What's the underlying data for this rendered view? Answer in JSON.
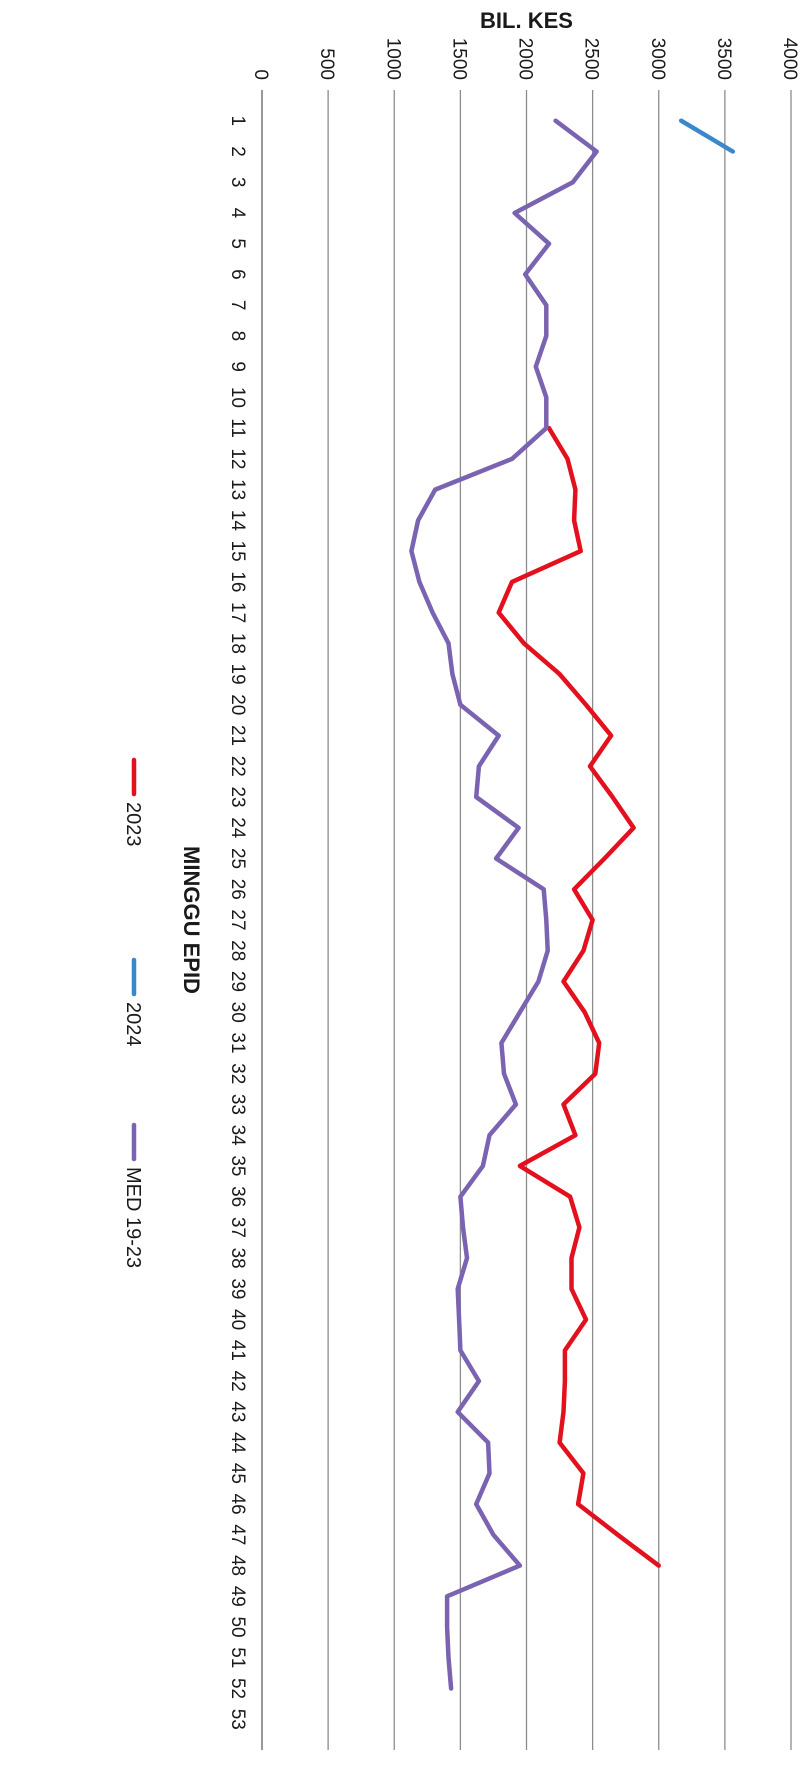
{
  "chart_data": {
    "type": "line",
    "title": "",
    "xlabel": "MINGGU EPID",
    "ylabel": "BIL. KES",
    "ylim": [
      0,
      4000
    ],
    "yticks": [
      0,
      500,
      1000,
      1500,
      2000,
      2500,
      3000,
      3500,
      4000
    ],
    "x": [
      1,
      2,
      3,
      4,
      5,
      6,
      7,
      8,
      9,
      10,
      11,
      12,
      13,
      14,
      15,
      16,
      17,
      18,
      19,
      20,
      21,
      22,
      23,
      24,
      25,
      26,
      27,
      28,
      29,
      30,
      31,
      32,
      33,
      34,
      35,
      36,
      37,
      38,
      39,
      40,
      41,
      42,
      43,
      44,
      45,
      46,
      47,
      48,
      49,
      50,
      51,
      52,
      53
    ],
    "xlim": [
      0,
      54
    ],
    "grid": true,
    "legend_position": "bottom",
    "orientation": "rotated-90-clockwise",
    "series": [
      {
        "name": "2023",
        "color": "#e3101e",
        "values": [
          null,
          null,
          null,
          null,
          null,
          null,
          null,
          null,
          null,
          null,
          2170,
          2310,
          2370,
          2360,
          2410,
          1890,
          1790,
          1980,
          2250,
          2450,
          2640,
          2480,
          2650,
          2810,
          2590,
          2360,
          2500,
          2430,
          2280,
          2440,
          2550,
          2520,
          2280,
          2370,
          1950,
          2330,
          2400,
          2340,
          2340,
          2450,
          2290,
          2290,
          2280,
          2250,
          2430,
          2390,
          2690,
          3000,
          null,
          null,
          null,
          null,
          null
        ]
      },
      {
        "name": "2024",
        "color": "#3a87cb",
        "values": [
          3170,
          3560,
          null,
          null,
          null,
          null,
          null,
          null,
          null,
          null,
          null,
          null,
          null,
          null,
          null,
          null,
          null,
          null,
          null,
          null,
          null,
          null,
          null,
          null,
          null,
          null,
          null,
          null,
          null,
          null,
          null,
          null,
          null,
          null,
          null,
          null,
          null,
          null,
          null,
          null,
          null,
          null,
          null,
          null,
          null,
          null,
          null,
          null,
          null,
          null,
          null,
          null,
          null
        ]
      },
      {
        "name": "MED 19-23",
        "color": "#7a63b0",
        "values": [
          2220,
          2530,
          2350,
          1910,
          2170,
          1990,
          2150,
          2150,
          2070,
          2150,
          2150,
          1890,
          1310,
          1180,
          1130,
          1190,
          1290,
          1410,
          1440,
          1500,
          1790,
          1640,
          1620,
          1940,
          1770,
          2130,
          2150,
          2160,
          2090,
          1950,
          1810,
          1830,
          1920,
          1720,
          1670,
          1500,
          1520,
          1550,
          1480,
          1490,
          1500,
          1640,
          1480,
          1710,
          1720,
          1620,
          1750,
          1950,
          1400,
          1400,
          1410,
          1430,
          null
        ]
      }
    ]
  }
}
